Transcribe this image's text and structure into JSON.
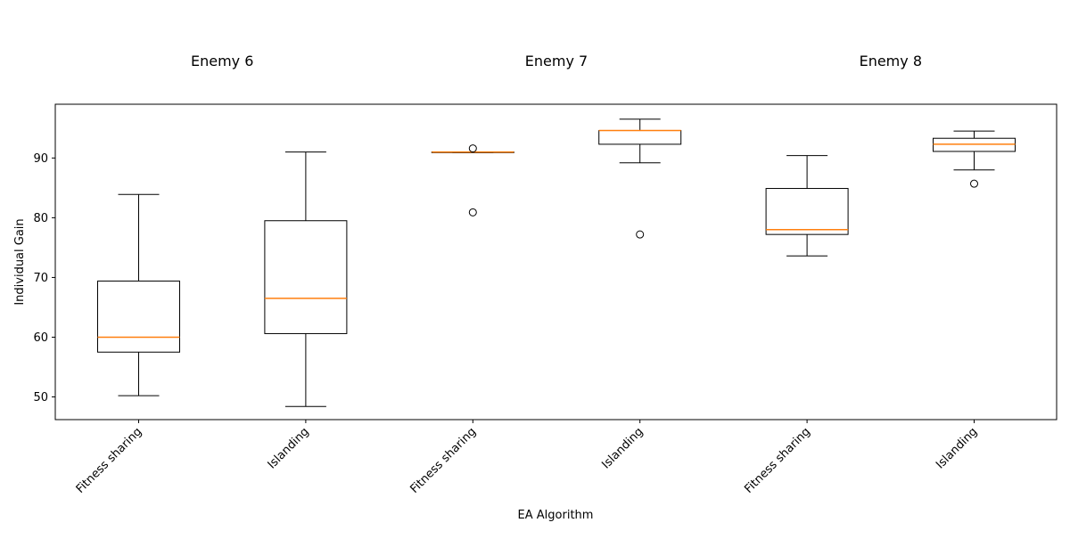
{
  "chart_data": {
    "type": "boxplot",
    "xlabel": "EA Algorithm",
    "ylabel": "Individual Gain",
    "ylim": [
      46.2,
      99.0
    ],
    "yticks": [
      50,
      60,
      70,
      80,
      90
    ],
    "grid": false,
    "legend": "none",
    "colors": {
      "box": "#000000",
      "median": "#ff7f0e",
      "frame": "#000000"
    },
    "groups": [
      {
        "title": "Enemy 6",
        "boxes": [
          0,
          1
        ]
      },
      {
        "title": "Enemy 7",
        "boxes": [
          2,
          3
        ]
      },
      {
        "title": "Enemy 8",
        "boxes": [
          4,
          5
        ]
      }
    ],
    "boxes": [
      {
        "label": "Fitness sharing",
        "whisker_low": 50.2,
        "q1": 57.5,
        "median": 60.0,
        "q3": 69.4,
        "whisker_high": 83.9,
        "outliers": []
      },
      {
        "label": "Islanding",
        "whisker_low": 48.4,
        "q1": 60.6,
        "median": 66.5,
        "q3": 79.5,
        "whisker_high": 91.0,
        "outliers": []
      },
      {
        "label": "Fitness sharing",
        "whisker_low": 90.9,
        "q1": 90.9,
        "median": 91.0,
        "q3": 91.0,
        "whisker_high": 91.0,
        "outliers": [
          80.9,
          91.6
        ]
      },
      {
        "label": "Islanding",
        "whisker_low": 89.2,
        "q1": 92.3,
        "median": 94.6,
        "q3": 94.6,
        "whisker_high": 96.5,
        "outliers": [
          77.2
        ]
      },
      {
        "label": "Fitness sharing",
        "whisker_low": 73.6,
        "q1": 77.2,
        "median": 78.0,
        "q3": 84.9,
        "whisker_high": 90.4,
        "outliers": []
      },
      {
        "label": "Islanding",
        "whisker_low": 88.0,
        "q1": 91.1,
        "median": 92.3,
        "q3": 93.3,
        "whisker_high": 94.5,
        "outliers": [
          85.7
        ]
      }
    ]
  }
}
